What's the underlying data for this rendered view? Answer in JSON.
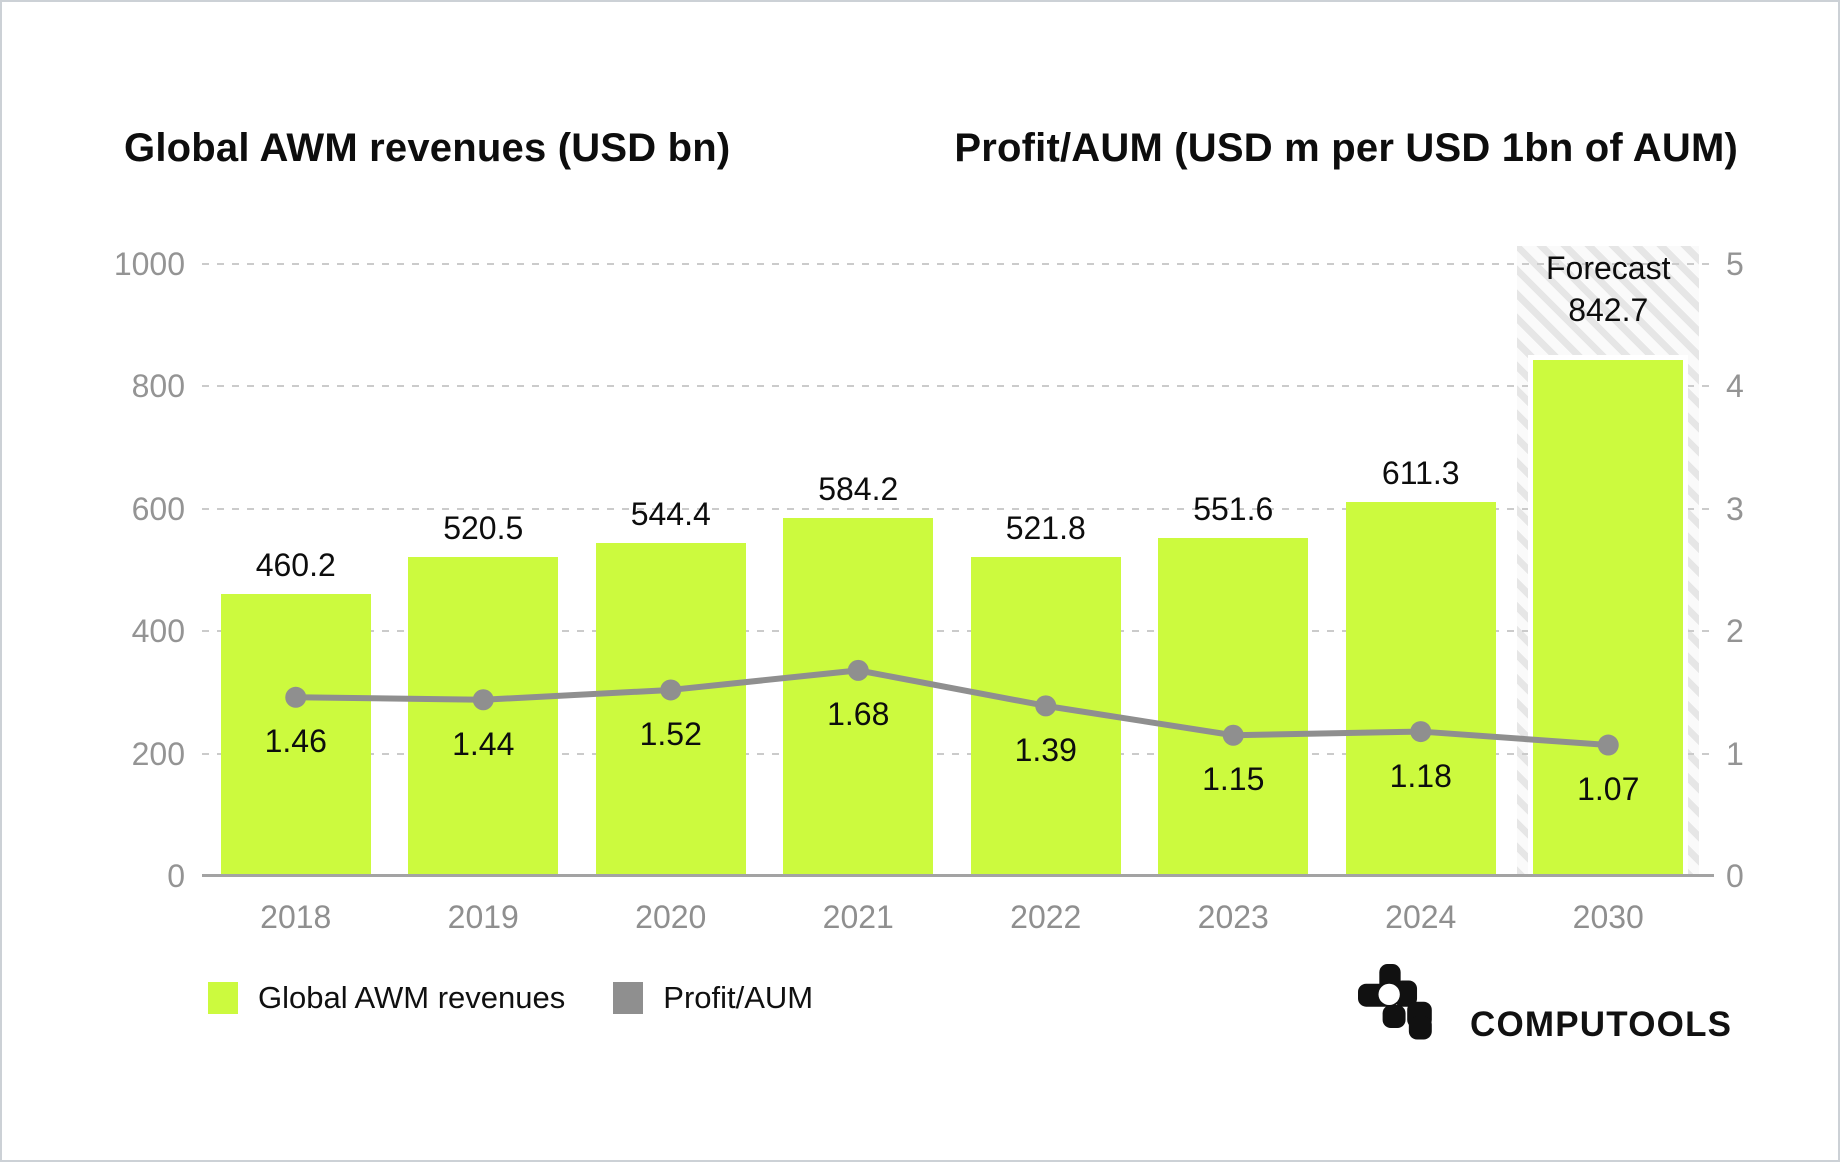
{
  "titles": {
    "left": "Global AWM revenues (USD bn)",
    "right": "Profit/AUM (USD m per USD 1bn of AUM)"
  },
  "chart_data": {
    "type": "bar",
    "subtype": "combo-bar-line-dual-axis",
    "categories": [
      "2018",
      "2019",
      "2020",
      "2021",
      "2022",
      "2023",
      "2024",
      "2030"
    ],
    "series": [
      {
        "name": "Global AWM revenues",
        "type": "bar",
        "axis": "left",
        "values": [
          460.2,
          520.5,
          544.4,
          584.2,
          521.8,
          551.6,
          611.3,
          842.7
        ],
        "color": "#ccfa3e"
      },
      {
        "name": "Profit/AUM",
        "type": "line",
        "axis": "right",
        "values": [
          1.46,
          1.44,
          1.52,
          1.68,
          1.39,
          1.15,
          1.18,
          1.07
        ],
        "color": "#8f8f8f"
      }
    ],
    "left_axis": {
      "range": [
        0,
        1000
      ],
      "ticks": [
        0,
        200,
        400,
        600,
        800,
        1000
      ]
    },
    "right_axis": {
      "range": [
        0,
        5
      ],
      "ticks": [
        0,
        1,
        2,
        3,
        4,
        5
      ]
    },
    "forecast": {
      "label": "Forecast",
      "category": "2030",
      "hatch": true
    },
    "grid": {
      "style": "dashed",
      "color": "#cbcbcb"
    },
    "legend_position": "bottom-left"
  },
  "legend": [
    {
      "label": "Global AWM revenues",
      "color": "#ccfa3e"
    },
    {
      "label": "Profit/AUM",
      "color": "#8f8f8f"
    }
  ],
  "logo": {
    "text": "COMPUTOOLS"
  },
  "colors": {
    "bar_green": "#ccfa3e",
    "line_gray": "#8f8f8f",
    "tick_gray": "#949494",
    "label_black": "#0d0d0d",
    "gridline": "#cbcbcb",
    "baseline": "#a3a3a3"
  }
}
